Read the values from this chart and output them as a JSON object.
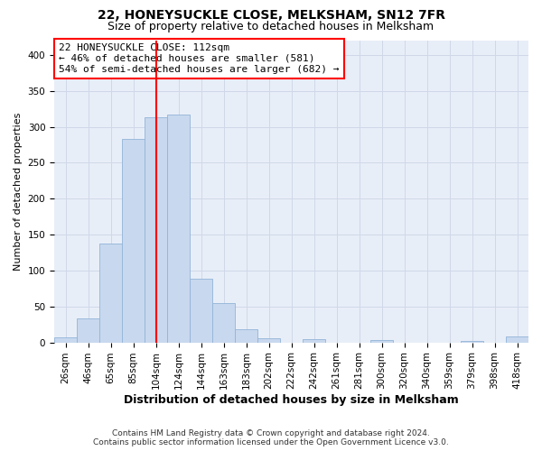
{
  "title": "22, HONEYSUCKLE CLOSE, MELKSHAM, SN12 7FR",
  "subtitle": "Size of property relative to detached houses in Melksham",
  "xlabel": "Distribution of detached houses by size in Melksham",
  "ylabel": "Number of detached properties",
  "bar_labels": [
    "26sqm",
    "46sqm",
    "65sqm",
    "85sqm",
    "104sqm",
    "124sqm",
    "144sqm",
    "163sqm",
    "183sqm",
    "202sqm",
    "222sqm",
    "242sqm",
    "261sqm",
    "281sqm",
    "300sqm",
    "320sqm",
    "340sqm",
    "359sqm",
    "379sqm",
    "398sqm",
    "418sqm"
  ],
  "bar_values": [
    7,
    33,
    137,
    283,
    313,
    317,
    88,
    55,
    18,
    6,
    0,
    5,
    0,
    0,
    3,
    0,
    0,
    0,
    2,
    0,
    8
  ],
  "bar_color": "#c8d8ee",
  "bar_edge_color": "#92b4d8",
  "vline_color": "red",
  "vline_pos": 4.5,
  "annotation_text": "22 HONEYSUCKLE CLOSE: 112sqm\n← 46% of detached houses are smaller (581)\n54% of semi-detached houses are larger (682) →",
  "annotation_box_color": "white",
  "annotation_box_edge_color": "red",
  "ylim": [
    0,
    420
  ],
  "yticks": [
    0,
    50,
    100,
    150,
    200,
    250,
    300,
    350,
    400
  ],
  "footer_line1": "Contains HM Land Registry data © Crown copyright and database right 2024.",
  "footer_line2": "Contains public sector information licensed under the Open Government Licence v3.0.",
  "grid_color": "#d0d8e8",
  "background_color": "#e8eef8",
  "title_fontsize": 10,
  "subtitle_fontsize": 9,
  "ylabel_fontsize": 8,
  "xlabel_fontsize": 9,
  "tick_fontsize": 7.5,
  "annotation_fontsize": 8,
  "footer_fontsize": 6.5
}
